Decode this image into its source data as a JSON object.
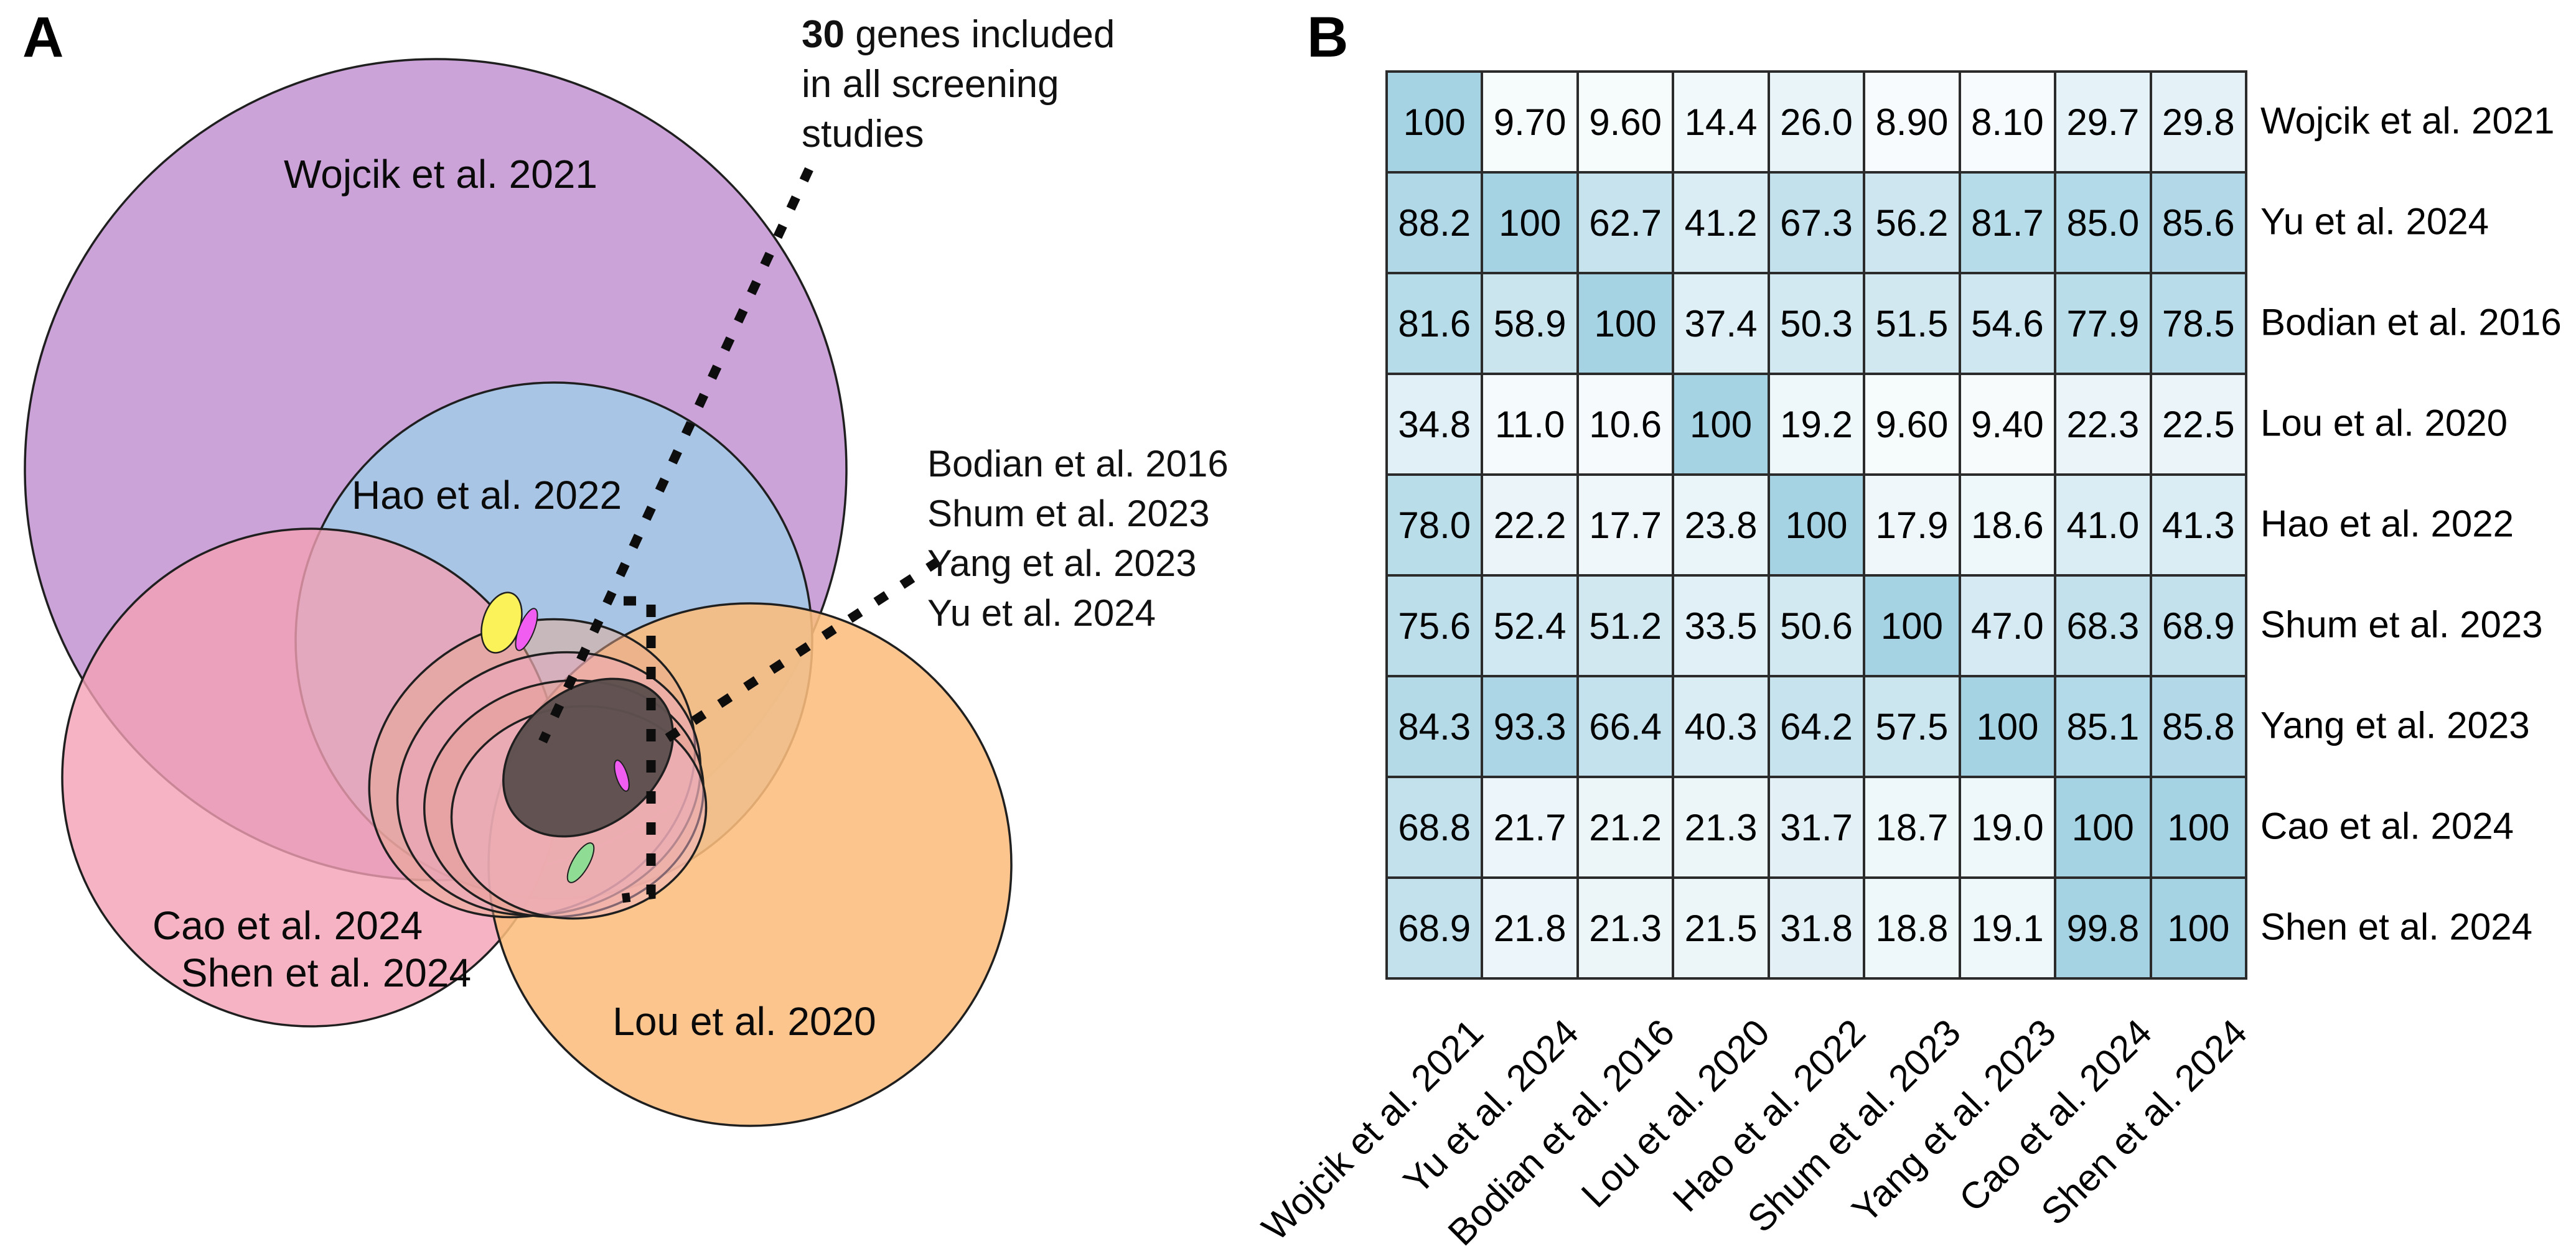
{
  "figure_labels": {
    "panelA": "A",
    "panelB": "B"
  },
  "panelA": {
    "sets": [
      {
        "id": "wojcik",
        "label": "Wojcik et al. 2021",
        "color": "#cba3d8"
      },
      {
        "id": "hao",
        "label": "Hao et al. 2022",
        "color": "#a5c8e6"
      },
      {
        "id": "cao_shen",
        "label_line1": "Cao et al. 2024",
        "label_line2": "Shen et al. 2024",
        "color": "#f2a0b4"
      },
      {
        "id": "lou",
        "label": "Lou et al. 2020",
        "color": "#fbbd7d"
      },
      {
        "id": "yu",
        "label": "Yu et al. 2024",
        "color": "#e8a98f"
      },
      {
        "id": "bodian",
        "label": "Bodian et al. 2016",
        "color": "#eba8c0"
      },
      {
        "id": "shum",
        "label": "Shum et al. 2023",
        "color": "#e59e92"
      },
      {
        "id": "yang",
        "label": "Yang et al. 2023",
        "color": "#f0b3c8"
      }
    ],
    "annotation_all": {
      "count": "30",
      "line1_rest": " genes included",
      "line2": "in all screening",
      "line3": "studies"
    },
    "annotation_four": [
      "Bodian et al. 2016",
      "Shum et al. 2023",
      "Yang et al. 2023",
      "Yu et al. 2024"
    ],
    "intersection_color": "#5d504e",
    "sliver_colors": {
      "yellow": "#fbf158",
      "magenta": "#f05df0",
      "green": "#8fdc95"
    },
    "outline_color": "#1f1f1f"
  },
  "chart_data": [
    {
      "type": "euler",
      "title": "Overlap of genes among carrier screening studies",
      "sets": [
        "Wojcik et al. 2021",
        "Hao et al. 2022",
        "Cao et al. 2024",
        "Shen et al. 2024",
        "Lou et al. 2020",
        "Bodian et al. 2016",
        "Shum et al. 2023",
        "Yang et al. 2023",
        "Yu et al. 2024"
      ],
      "annotations": [
        "30 genes included in all screening studies",
        "Bodian et al. 2016 / Shum et al. 2023 / Yang et al. 2023 / Yu et al. 2024"
      ]
    },
    {
      "type": "heatmap",
      "rows": [
        "Wojcik et al. 2021",
        "Yu et al. 2024",
        "Bodian et al. 2016",
        "Lou et al. 2020",
        "Hao et al. 2022",
        "Shum et al. 2023",
        "Yang et al. 2023",
        "Cao et al. 2024",
        "Shen et al. 2024"
      ],
      "cols": [
        "Wojcik et al. 2021",
        "Yu et al. 2024",
        "Bodian et al. 2016",
        "Lou et al. 2020",
        "Hao et al. 2022",
        "Shum et al. 2023",
        "Yang et al. 2023",
        "Cao et al. 2024",
        "Shen et al. 2024"
      ],
      "values": [
        [
          "100",
          "9.70",
          "9.60",
          "14.4",
          "26.0",
          "8.90",
          "8.10",
          "29.7",
          "29.8"
        ],
        [
          "88.2",
          "100",
          "62.7",
          "41.2",
          "67.3",
          "56.2",
          "81.7",
          "85.0",
          "85.6"
        ],
        [
          "81.6",
          "58.9",
          "100",
          "37.4",
          "50.3",
          "51.5",
          "54.6",
          "77.9",
          "78.5"
        ],
        [
          "34.8",
          "11.0",
          "10.6",
          "100",
          "19.2",
          "9.60",
          "9.40",
          "22.3",
          "22.5"
        ],
        [
          "78.0",
          "22.2",
          "17.7",
          "23.8",
          "100",
          "17.9",
          "18.6",
          "41.0",
          "41.3"
        ],
        [
          "75.6",
          "52.4",
          "51.2",
          "33.5",
          "50.6",
          "100",
          "47.0",
          "68.3",
          "68.9"
        ],
        [
          "84.3",
          "93.3",
          "66.4",
          "40.3",
          "64.2",
          "57.5",
          "100",
          "85.1",
          "85.8"
        ],
        [
          "68.8",
          "21.7",
          "21.2",
          "21.3",
          "31.7",
          "18.7",
          "19.0",
          "100",
          "100"
        ],
        [
          "68.9",
          "21.8",
          "21.3",
          "21.5",
          "31.8",
          "18.8",
          "19.1",
          "99.8",
          "100"
        ]
      ],
      "value_range": [
        0,
        100
      ],
      "color_scale": {
        "low": "#ffffff",
        "high": "#a6d3e4"
      },
      "grid": true,
      "legend": "none"
    }
  ]
}
